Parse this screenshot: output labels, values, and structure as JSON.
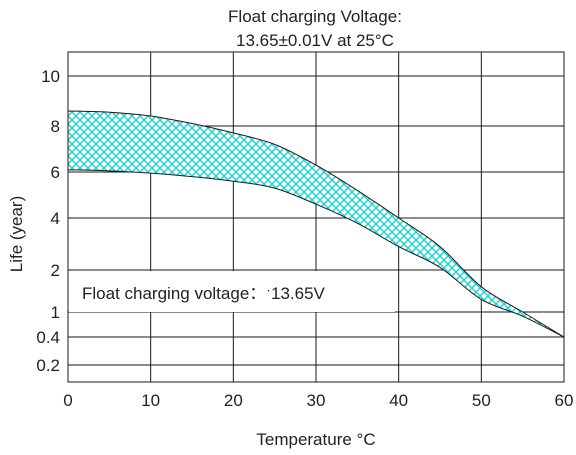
{
  "chart_data": {
    "type": "area",
    "title_lines": [
      "Float charging Voltage:",
      "13.65±0.01V at 25°C"
    ],
    "xlabel": "Temperature °C",
    "ylabel": "Life (year)",
    "xlim": [
      0,
      60
    ],
    "x_ticks": [
      0,
      10,
      20,
      30,
      40,
      50,
      60
    ],
    "y_ticks": [
      10,
      8,
      6,
      4,
      2,
      1,
      0.4,
      0.2
    ],
    "y_scale": "custom (non-linear: 10–2 evenly spaced, then 1, 0.4, 0.2)",
    "grid": true,
    "band_color": "#19d3d3",
    "annotation": "Float charging voltage：ˑ13.65V",
    "series": [
      {
        "role": "upper bound",
        "x": [
          0,
          5,
          10,
          15,
          20,
          25,
          30,
          35,
          40,
          45,
          50,
          55,
          60
        ],
        "y": [
          8.6,
          8.55,
          8.4,
          8.1,
          7.7,
          7.2,
          6.3,
          5.2,
          4.0,
          2.9,
          1.6,
          1.0,
          0.4
        ]
      },
      {
        "role": "lower bound",
        "x": [
          0,
          5,
          10,
          15,
          20,
          25,
          30,
          35,
          40,
          45,
          50,
          55,
          60
        ],
        "y": [
          6.1,
          6.05,
          5.95,
          5.8,
          5.6,
          5.3,
          4.6,
          3.8,
          2.9,
          2.1,
          1.3,
          0.9,
          0.4
        ]
      }
    ]
  }
}
